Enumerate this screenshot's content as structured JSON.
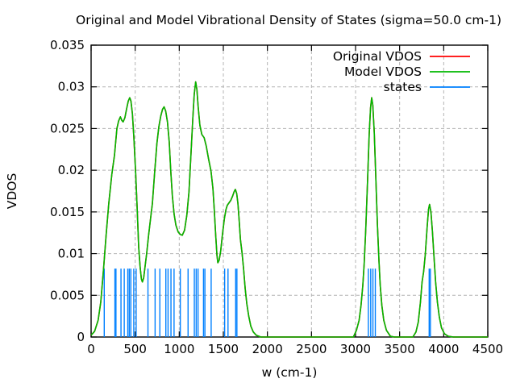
{
  "window": {
    "background": "#ffffff"
  },
  "chart_data": {
    "type": "line",
    "title": "Original and Model Vibrational Density of States (sigma=50.0 cm-1)",
    "xlabel": "w (cm-1)",
    "ylabel": "VDOS",
    "xlim": [
      0,
      4500
    ],
    "ylim": [
      0,
      0.035
    ],
    "xticks": [
      0,
      500,
      1000,
      1500,
      2000,
      2500,
      3000,
      3500,
      4000,
      4500
    ],
    "yticks": [
      0,
      0.005,
      0.01,
      0.015,
      0.02,
      0.025,
      0.03,
      0.035
    ],
    "grid": true,
    "grid_style": "dashed",
    "grid_color": "#b4b4b4",
    "frame_color": "#000000",
    "legend_position": "top-right-inside",
    "series": [
      {
        "name": "Original VDOS",
        "color": "#ff0000",
        "style": "line",
        "note": "curve coincides exactly with Model VDOS and is hidden beneath it"
      },
      {
        "name": "Model VDOS",
        "color": "#00b800",
        "style": "line",
        "points": [
          [
            0,
            0.0002
          ],
          [
            40,
            0.0007
          ],
          [
            80,
            0.002
          ],
          [
            110,
            0.0042
          ],
          [
            140,
            0.008
          ],
          [
            170,
            0.0122
          ],
          [
            200,
            0.016
          ],
          [
            235,
            0.0195
          ],
          [
            265,
            0.0218
          ],
          [
            293,
            0.025
          ],
          [
            312,
            0.0259
          ],
          [
            332,
            0.0264
          ],
          [
            348,
            0.026
          ],
          [
            363,
            0.0258
          ],
          [
            383,
            0.0263
          ],
          [
            403,
            0.0274
          ],
          [
            422,
            0.0283
          ],
          [
            438,
            0.0287
          ],
          [
            452,
            0.0283
          ],
          [
            468,
            0.0268
          ],
          [
            485,
            0.024
          ],
          [
            505,
            0.0198
          ],
          [
            522,
            0.0155
          ],
          [
            540,
            0.0108
          ],
          [
            556,
            0.0084
          ],
          [
            570,
            0.007
          ],
          [
            582,
            0.0066
          ],
          [
            596,
            0.0071
          ],
          [
            614,
            0.0086
          ],
          [
            630,
            0.01
          ],
          [
            652,
            0.0122
          ],
          [
            672,
            0.014
          ],
          [
            695,
            0.016
          ],
          [
            720,
            0.0196
          ],
          [
            746,
            0.0232
          ],
          [
            768,
            0.0252
          ],
          [
            790,
            0.0265
          ],
          [
            810,
            0.0273
          ],
          [
            828,
            0.0276
          ],
          [
            846,
            0.0271
          ],
          [
            866,
            0.0258
          ],
          [
            886,
            0.0234
          ],
          [
            904,
            0.0199
          ],
          [
            922,
            0.0169
          ],
          [
            942,
            0.0147
          ],
          [
            962,
            0.0134
          ],
          [
            988,
            0.0126
          ],
          [
            1012,
            0.0123
          ],
          [
            1034,
            0.0122
          ],
          [
            1060,
            0.0128
          ],
          [
            1086,
            0.0146
          ],
          [
            1110,
            0.0174
          ],
          [
            1134,
            0.0222
          ],
          [
            1154,
            0.0263
          ],
          [
            1170,
            0.0291
          ],
          [
            1186,
            0.0306
          ],
          [
            1200,
            0.0297
          ],
          [
            1214,
            0.0277
          ],
          [
            1234,
            0.0254
          ],
          [
            1256,
            0.0243
          ],
          [
            1282,
            0.0239
          ],
          [
            1306,
            0.0229
          ],
          [
            1332,
            0.0214
          ],
          [
            1360,
            0.0199
          ],
          [
            1382,
            0.0178
          ],
          [
            1398,
            0.0152
          ],
          [
            1414,
            0.0121
          ],
          [
            1428,
            0.0098
          ],
          [
            1438,
            0.0089
          ],
          [
            1452,
            0.0092
          ],
          [
            1470,
            0.0103
          ],
          [
            1490,
            0.0123
          ],
          [
            1512,
            0.0142
          ],
          [
            1530,
            0.0153
          ],
          [
            1545,
            0.0158
          ],
          [
            1565,
            0.0161
          ],
          [
            1585,
            0.0164
          ],
          [
            1605,
            0.0169
          ],
          [
            1622,
            0.0174
          ],
          [
            1636,
            0.0177
          ],
          [
            1652,
            0.0172
          ],
          [
            1666,
            0.016
          ],
          [
            1680,
            0.0139
          ],
          [
            1694,
            0.0117
          ],
          [
            1712,
            0.0101
          ],
          [
            1730,
            0.0082
          ],
          [
            1748,
            0.0058
          ],
          [
            1766,
            0.004
          ],
          [
            1788,
            0.0025
          ],
          [
            1812,
            0.0013
          ],
          [
            1840,
            0.0006
          ],
          [
            1875,
            0.0002
          ],
          [
            1925,
            0
          ],
          [
            2975,
            0
          ],
          [
            3010,
            0.0008
          ],
          [
            3040,
            0.002
          ],
          [
            3062,
            0.0038
          ],
          [
            3082,
            0.0062
          ],
          [
            3098,
            0.0088
          ],
          [
            3115,
            0.0128
          ],
          [
            3135,
            0.0185
          ],
          [
            3155,
            0.0243
          ],
          [
            3170,
            0.0275
          ],
          [
            3183,
            0.0287
          ],
          [
            3196,
            0.0278
          ],
          [
            3212,
            0.0245
          ],
          [
            3230,
            0.0192
          ],
          [
            3248,
            0.0135
          ],
          [
            3265,
            0.0092
          ],
          [
            3280,
            0.0062
          ],
          [
            3298,
            0.0038
          ],
          [
            3320,
            0.002
          ],
          [
            3350,
            0.0008
          ],
          [
            3395,
            0.0001
          ],
          [
            3440,
            0
          ],
          [
            3650,
            0
          ],
          [
            3685,
            0.0006
          ],
          [
            3712,
            0.0018
          ],
          [
            3736,
            0.0042
          ],
          [
            3755,
            0.0066
          ],
          [
            3772,
            0.0078
          ],
          [
            3790,
            0.0098
          ],
          [
            3812,
            0.0132
          ],
          [
            3828,
            0.0153
          ],
          [
            3840,
            0.0159
          ],
          [
            3855,
            0.015
          ],
          [
            3872,
            0.0127
          ],
          [
            3890,
            0.0096
          ],
          [
            3908,
            0.0066
          ],
          [
            3928,
            0.0042
          ],
          [
            3950,
            0.0024
          ],
          [
            3975,
            0.0011
          ],
          [
            4008,
            0.0004
          ],
          [
            4050,
            0.0001
          ],
          [
            4110,
            0
          ],
          [
            4500,
            0
          ]
        ]
      },
      {
        "name": "states",
        "color": "#0080ff",
        "style": "impulses",
        "impulse_height": 0.0082,
        "frequencies": [
          149,
          270,
          282,
          339,
          376,
          416,
          433,
          451,
          484,
          511,
          645,
          726,
          780,
          848,
          873,
          906,
          941,
          1012,
          1100,
          1171,
          1192,
          1213,
          1275,
          1291,
          1362,
          1515,
          1553,
          1640,
          1654,
          3145,
          3172,
          3197,
          3224,
          3835,
          3849
        ]
      }
    ]
  }
}
